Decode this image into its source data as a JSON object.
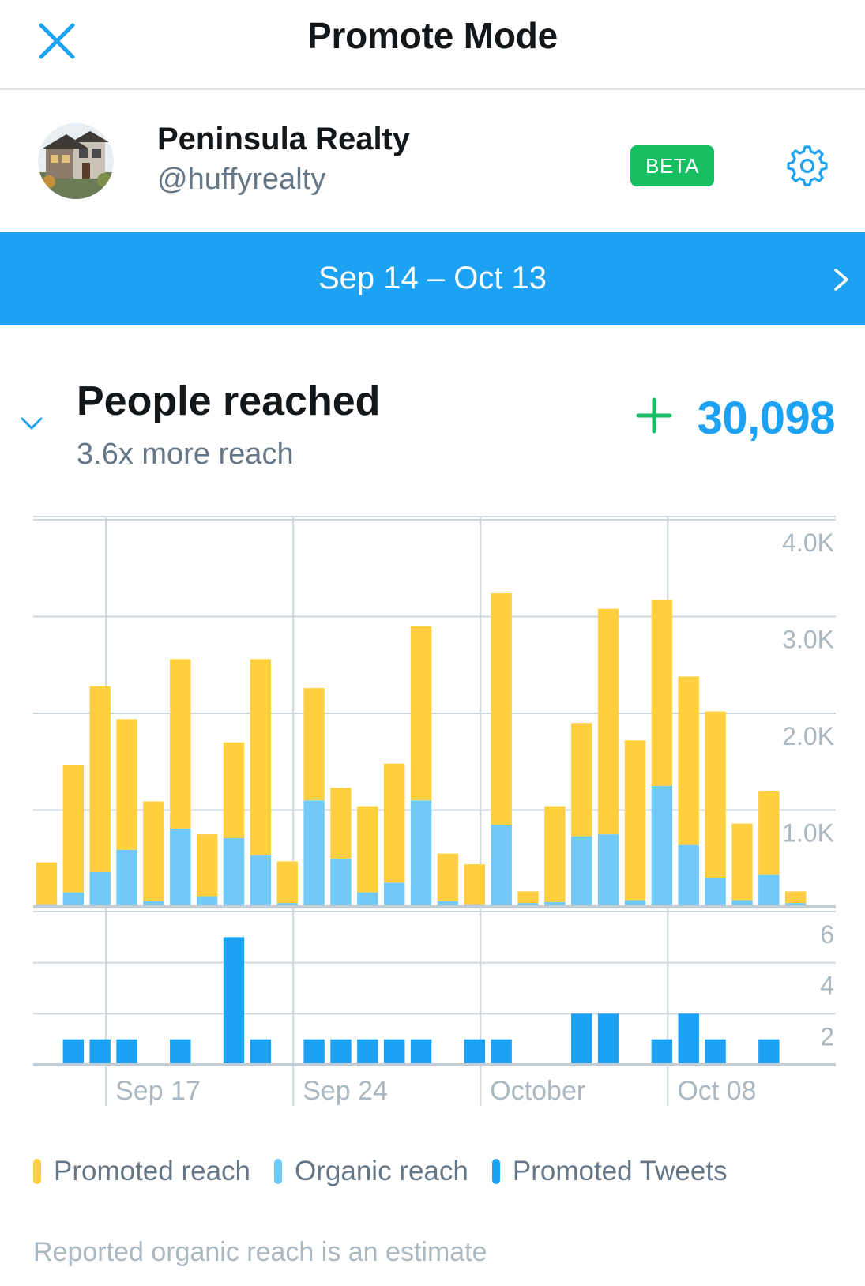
{
  "header": {
    "title": "Promote Mode",
    "close_icon": "close-icon"
  },
  "account": {
    "name": "Peninsula Realty",
    "handle": "@huffyrealty",
    "badge": "BETA",
    "settings_icon": "gear-icon"
  },
  "date_range": {
    "label": "Sep 14 – Oct 13",
    "next_icon": "chevron-right-icon"
  },
  "metric": {
    "title": "People reached",
    "subtitle": "3.6x more reach",
    "value": "30,098",
    "collapse_icon": "chevron-down-icon",
    "plus_icon": "plus-icon"
  },
  "colors": {
    "accent": "#1da1f2",
    "promoted_reach": "#ffcf3f",
    "organic_reach": "#71c9f8",
    "promoted_tweets": "#1da1f2",
    "beta_green": "#17bf63",
    "grid": "#ccd6dd",
    "tick_text": "#aab8c2"
  },
  "chart_data": [
    {
      "type": "bar",
      "stacked": true,
      "x": [
        "Sep 14",
        "Sep 15",
        "Sep 16",
        "Sep 17",
        "Sep 18",
        "Sep 19",
        "Sep 20",
        "Sep 21",
        "Sep 22",
        "Sep 23",
        "Sep 24",
        "Sep 25",
        "Sep 26",
        "Sep 27",
        "Sep 28",
        "Sep 29",
        "Sep 30",
        "Oct 01",
        "Oct 02",
        "Oct 03",
        "Oct 04",
        "Oct 05",
        "Oct 06",
        "Oct 07",
        "Oct 08",
        "Oct 09",
        "Oct 10",
        "Oct 11",
        "Oct 12",
        "Oct 13"
      ],
      "series": [
        {
          "name": "Organic reach",
          "values": [
            20,
            150,
            360,
            590,
            60,
            810,
            110,
            710,
            530,
            40,
            1100,
            500,
            150,
            250,
            1100,
            60,
            20,
            850,
            40,
            50,
            730,
            750,
            70,
            1250,
            640,
            300,
            70,
            330,
            40,
            0
          ]
        },
        {
          "name": "Promoted reach",
          "values": [
            440,
            1320,
            1920,
            1350,
            1030,
            1750,
            640,
            990,
            2030,
            430,
            1160,
            730,
            890,
            1230,
            1800,
            490,
            420,
            2390,
            120,
            990,
            1170,
            2330,
            1650,
            1920,
            1740,
            1720,
            790,
            870,
            120,
            0
          ]
        }
      ],
      "ylim": [
        0,
        4000
      ],
      "yticks": [
        "1.0K",
        "2.0K",
        "3.0K",
        "4.0K"
      ],
      "grid": true
    },
    {
      "type": "bar",
      "x": [
        "Sep 14",
        "Sep 15",
        "Sep 16",
        "Sep 17",
        "Sep 18",
        "Sep 19",
        "Sep 20",
        "Sep 21",
        "Sep 22",
        "Sep 23",
        "Sep 24",
        "Sep 25",
        "Sep 26",
        "Sep 27",
        "Sep 28",
        "Sep 29",
        "Sep 30",
        "Oct 01",
        "Oct 02",
        "Oct 03",
        "Oct 04",
        "Oct 05",
        "Oct 06",
        "Oct 07",
        "Oct 08",
        "Oct 09",
        "Oct 10",
        "Oct 11",
        "Oct 12",
        "Oct 13"
      ],
      "series": [
        {
          "name": "Promoted Tweets",
          "values": [
            0,
            1,
            1,
            1,
            0,
            1,
            0,
            5,
            1,
            0,
            1,
            1,
            1,
            1,
            1,
            0,
            1,
            1,
            0,
            0,
            2,
            2,
            0,
            1,
            2,
            1,
            0,
            1,
            0,
            0
          ]
        }
      ],
      "ylim": [
        0,
        6
      ],
      "yticks": [
        "2",
        "4",
        "6"
      ],
      "xticks": [
        "Sep 17",
        "Sep 24",
        "October",
        "Oct 08"
      ],
      "grid": true
    }
  ],
  "legend": [
    {
      "label": "Promoted reach",
      "color": "#ffcf3f"
    },
    {
      "label": "Organic reach",
      "color": "#71c9f8"
    },
    {
      "label": "Promoted Tweets",
      "color": "#1da1f2"
    }
  ],
  "footnote": "Reported organic reach is an estimate"
}
